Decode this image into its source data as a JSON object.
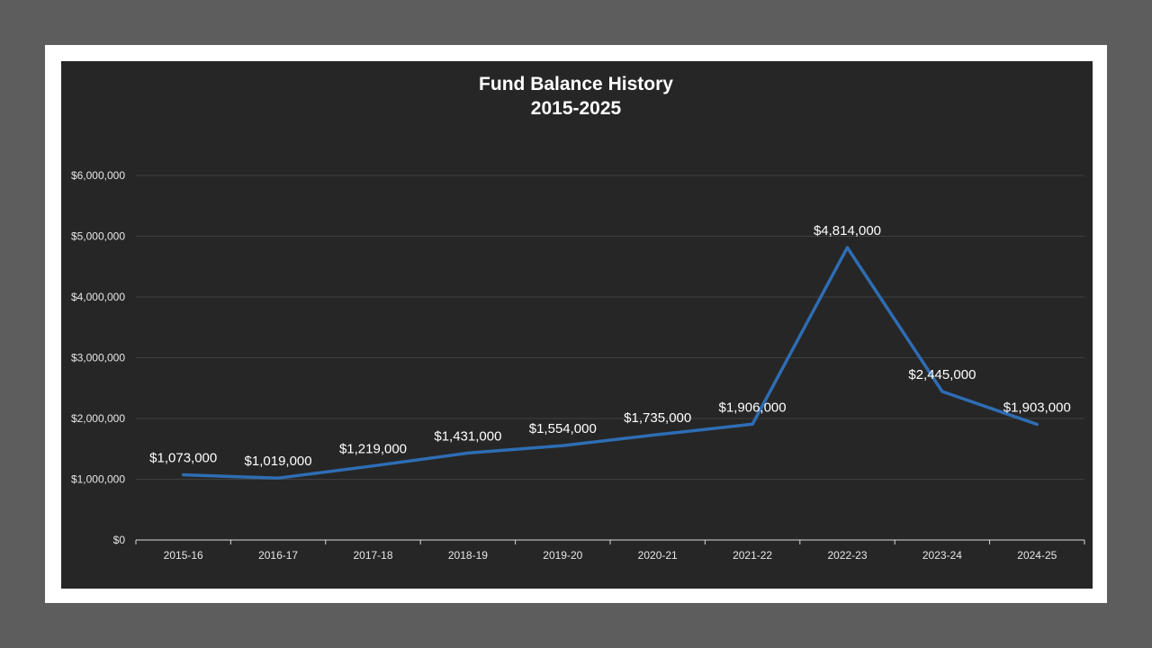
{
  "chart_data": {
    "type": "line",
    "title": "Fund Balance History",
    "subtitle": "2015-2025",
    "xlabel": "",
    "ylabel": "",
    "categories": [
      "2015-16",
      "2016-17",
      "2017-18",
      "2018-19",
      "2019-20",
      "2020-21",
      "2021-22",
      "2022-23",
      "2023-24",
      "2024-25"
    ],
    "series": [
      {
        "values": [
          1073000,
          1019000,
          1219000,
          1431000,
          1554000,
          1735000,
          1906000,
          4814000,
          2445000,
          1903000
        ],
        "data_labels": [
          "$1,073,000",
          "$1,019,000",
          "$1,219,000",
          "$1,431,000",
          "$1,554,000",
          "$1,735,000",
          "$1,906,000",
          "$4,814,000",
          "$2,445,000",
          "$1,903,000"
        ],
        "color": "#2e6db4"
      }
    ],
    "ylim": [
      0,
      6000000
    ],
    "y_ticks": [
      0,
      1000000,
      2000000,
      3000000,
      4000000,
      5000000,
      6000000
    ],
    "y_tick_labels": [
      "$0",
      "$1,000,000",
      "$2,000,000",
      "$3,000,000",
      "$4,000,000",
      "$5,000,000",
      "$6,000,000"
    ],
    "grid": true,
    "legend": "none"
  },
  "colors": {
    "background": "#262626",
    "frame": "#ffffff",
    "outer": "#5d5d5d",
    "gridline": "#404040",
    "axis": "#d9d9d9",
    "line": "#2e6db4"
  }
}
